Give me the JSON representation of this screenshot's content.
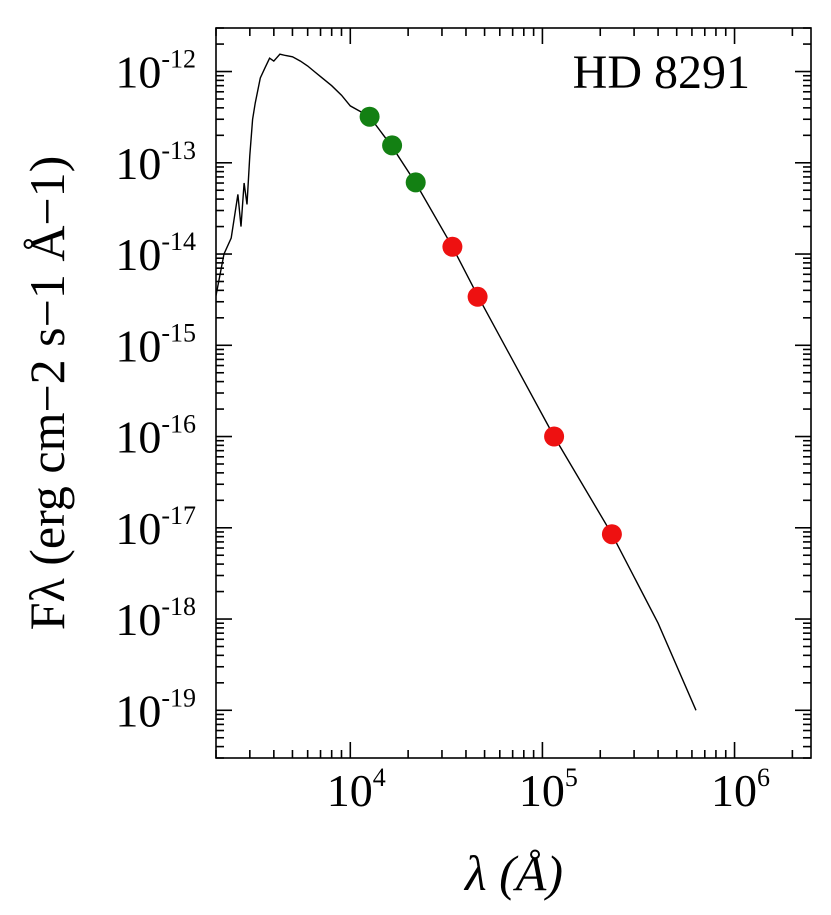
{
  "chart_data": {
    "type": "scatter",
    "title": "",
    "annotation": "HD 8291",
    "xlabel": "λ (Å)",
    "ylabel": "Fλ (erg cm−2 s−1 Å−1)",
    "xscale": "log",
    "yscale": "log",
    "xlim": [
      2000,
      2500000
    ],
    "ylim": [
      3e-20,
      3e-12
    ],
    "grid": false,
    "x_ticks": [
      {
        "base": "10",
        "exp": "4",
        "value": 10000
      },
      {
        "base": "10",
        "exp": "5",
        "value": 100000
      },
      {
        "base": "10",
        "exp": "6",
        "value": 1000000
      }
    ],
    "y_ticks": [
      {
        "base": "10",
        "exp": "-12",
        "value": 1e-12
      },
      {
        "base": "10",
        "exp": "-13",
        "value": 1e-13
      },
      {
        "base": "10",
        "exp": "-14",
        "value": 1e-14
      },
      {
        "base": "10",
        "exp": "-15",
        "value": 1e-15
      },
      {
        "base": "10",
        "exp": "-16",
        "value": 1e-16
      },
      {
        "base": "10",
        "exp": "-17",
        "value": 1e-17
      },
      {
        "base": "10",
        "exp": "-18",
        "value": 1e-18
      },
      {
        "base": "10",
        "exp": "-19",
        "value": 1e-19
      }
    ],
    "series": [
      {
        "kind": "model-line",
        "color": "#000000",
        "x": [
          2000,
          2200,
          2400,
          2600,
          2700,
          2800,
          2900,
          3000,
          3100,
          3200,
          3400,
          3600,
          3800,
          4000,
          4300,
          4600,
          5000,
          5500,
          6000,
          6500,
          7000,
          8000,
          9000,
          10000,
          12600,
          16500,
          21900,
          34000,
          46000,
          115000,
          230000,
          400000,
          630000
        ],
        "y": [
          3.5e-15,
          1e-14,
          1.5e-14,
          4.5e-14,
          2e-14,
          6e-14,
          3.5e-14,
          1.2e-13,
          3e-13,
          4.5e-13,
          8.5e-13,
          1.1e-12,
          1.4e-12,
          1.3e-12,
          1.55e-12,
          1.5e-12,
          1.45e-12,
          1.3e-12,
          1.15e-12,
          1e-12,
          8.8e-13,
          7e-13,
          5.5e-13,
          4.2e-13,
          3.2e-13,
          1.5e-13,
          6e-14,
          1.2e-14,
          3.5e-15,
          1e-16,
          8.5e-18,
          9e-19,
          1e-19
        ]
      },
      {
        "kind": "points",
        "color": "#138013",
        "x": [
          12600,
          16500,
          21900
        ],
        "y": [
          3.2e-13,
          1.55e-13,
          6.1e-14
        ]
      },
      {
        "kind": "points",
        "color": "#ee1111",
        "x": [
          34000,
          46000,
          115000,
          230000
        ],
        "y": [
          1.2e-14,
          3.4e-15,
          1e-16,
          8.5e-18
        ]
      }
    ]
  }
}
